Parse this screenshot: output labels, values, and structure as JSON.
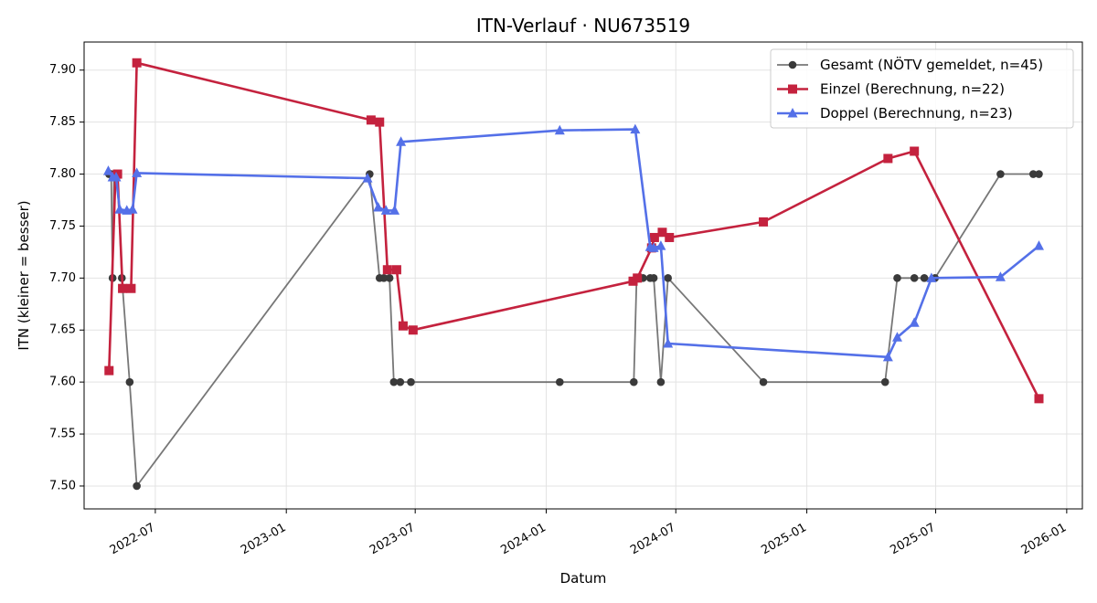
{
  "chart_data": {
    "type": "line",
    "title": "ITN-Verlauf · NU673519",
    "xlabel": "Datum",
    "ylabel": "ITN  (kleiner = besser)",
    "x_ticks": [
      "2022-07",
      "2023-01",
      "2023-07",
      "2024-01",
      "2024-07",
      "2025-01",
      "2025-07",
      "2026-01"
    ],
    "y_ticks": [
      "7.50",
      "7.55",
      "7.60",
      "7.65",
      "7.70",
      "7.75",
      "7.80",
      "7.85",
      "7.90"
    ],
    "xlim": [
      "2022-03-23",
      "2026-01-23"
    ],
    "ylim": [
      7.478,
      7.927
    ],
    "grid": true,
    "legend_position": "top-right",
    "series": [
      {
        "name": "Gesamt (NÖTV gemeldet, n=45)",
        "color": "#555555",
        "marker": "circle",
        "points": [
          [
            "2022-04-27",
            7.8
          ],
          [
            "2022-04-29",
            7.8
          ],
          [
            "2022-04-30",
            7.8
          ],
          [
            "2022-05-02",
            7.7
          ],
          [
            "2022-05-04",
            7.8
          ],
          [
            "2022-05-06",
            7.8
          ],
          [
            "2022-05-09",
            7.8
          ],
          [
            "2022-05-15",
            7.7
          ],
          [
            "2022-05-26",
            7.6
          ],
          [
            "2022-06-05",
            7.5
          ],
          [
            "2023-04-28",
            7.8
          ],
          [
            "2023-05-12",
            7.7
          ],
          [
            "2023-05-18",
            7.7
          ],
          [
            "2023-05-26",
            7.7
          ],
          [
            "2023-06-01",
            7.6
          ],
          [
            "2023-06-10",
            7.6
          ],
          [
            "2023-06-25",
            7.6
          ],
          [
            "2024-01-20",
            7.6
          ],
          [
            "2024-05-03",
            7.6
          ],
          [
            "2024-05-07",
            7.7
          ],
          [
            "2024-05-16",
            7.7
          ],
          [
            "2024-05-26",
            7.7
          ],
          [
            "2024-05-31",
            7.7
          ],
          [
            "2024-06-10",
            7.6
          ],
          [
            "2024-06-20",
            7.7
          ],
          [
            "2024-11-01",
            7.6
          ],
          [
            "2025-04-21",
            7.6
          ],
          [
            "2025-05-08",
            7.7
          ],
          [
            "2025-06-01",
            7.7
          ],
          [
            "2025-06-15",
            7.7
          ],
          [
            "2025-06-30",
            7.7
          ],
          [
            "2025-09-30",
            7.8
          ],
          [
            "2025-11-15",
            7.8
          ],
          [
            "2025-11-23",
            7.8
          ]
        ]
      },
      {
        "name": "Einzel (Berechnung, n=22)",
        "color": "#c4223e",
        "marker": "square",
        "points": [
          [
            "2022-04-27",
            7.611
          ],
          [
            "2022-05-06",
            7.798
          ],
          [
            "2022-05-09",
            7.8
          ],
          [
            "2022-05-16",
            7.69
          ],
          [
            "2022-05-28",
            7.69
          ],
          [
            "2022-06-05",
            7.907
          ],
          [
            "2023-04-30",
            7.852
          ],
          [
            "2023-05-12",
            7.85
          ],
          [
            "2023-05-23",
            7.708
          ],
          [
            "2023-06-05",
            7.708
          ],
          [
            "2023-06-14",
            7.654
          ],
          [
            "2023-06-28",
            7.65
          ],
          [
            "2024-05-02",
            7.697
          ],
          [
            "2024-05-08",
            7.7
          ],
          [
            "2024-05-28",
            7.729
          ],
          [
            "2024-06-01",
            7.739
          ],
          [
            "2024-06-12",
            7.744
          ],
          [
            "2024-06-22",
            7.739
          ],
          [
            "2024-11-01",
            7.754
          ],
          [
            "2025-04-25",
            7.815
          ],
          [
            "2025-06-01",
            7.822
          ],
          [
            "2025-11-23",
            7.584
          ]
        ]
      },
      {
        "name": "Doppel (Berechnung, n=23)",
        "color": "#5470e8",
        "marker": "triangle",
        "points": [
          [
            "2022-04-26",
            7.803
          ],
          [
            "2022-05-02",
            7.797
          ],
          [
            "2022-05-07",
            7.797
          ],
          [
            "2022-05-12",
            7.766
          ],
          [
            "2022-05-22",
            7.765
          ],
          [
            "2022-05-30",
            7.766
          ],
          [
            "2022-06-05",
            7.801
          ],
          [
            "2023-04-25",
            7.796
          ],
          [
            "2023-05-10",
            7.768
          ],
          [
            "2023-05-21",
            7.765
          ],
          [
            "2023-06-02",
            7.765
          ],
          [
            "2023-06-11",
            7.831
          ],
          [
            "2024-01-20",
            7.842
          ],
          [
            "2024-05-05",
            7.843
          ],
          [
            "2024-05-26",
            7.73
          ],
          [
            "2024-05-31",
            7.729
          ],
          [
            "2024-06-10",
            7.731
          ],
          [
            "2024-06-20",
            7.637
          ],
          [
            "2025-04-25",
            7.624
          ],
          [
            "2025-05-08",
            7.643
          ],
          [
            "2025-06-01",
            7.657
          ],
          [
            "2025-06-25",
            7.7
          ],
          [
            "2025-09-30",
            7.701
          ],
          [
            "2025-11-23",
            7.731
          ]
        ]
      }
    ]
  }
}
